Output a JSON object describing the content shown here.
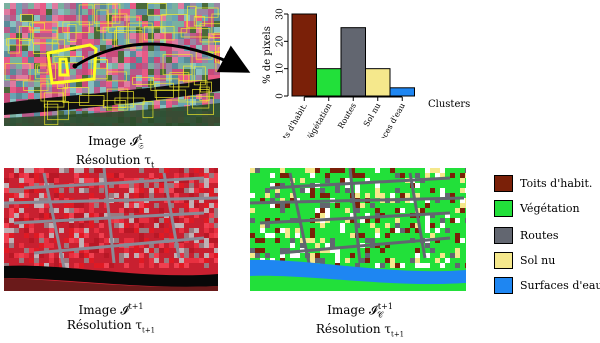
{
  "colors": {
    "toits": "#7a2008",
    "vegetation": "#22e03a",
    "routes": "#626670",
    "sol_nu": "#f5e88c",
    "eau": "#1e86f2",
    "segment_outline": "#f4ec2a",
    "pink": "#e85a86",
    "cyan": "#6aa4b2",
    "red_ir": "#e01a24"
  },
  "icons": {
    "arrow": "curved-arrow-icon"
  },
  "top_left_caption": {
    "line1": "Image 𝓘",
    "line1_sub": "𝔖",
    "line1_sup": "t",
    "line2": "Résolution τ",
    "line2_sub": "t"
  },
  "bottom_left_caption": {
    "line1": "Image 𝓘",
    "line1_sup": "t+1",
    "line2": "Résolution τ",
    "line2_sub": "t+1"
  },
  "bottom_right_caption": {
    "line1": "Image 𝓘",
    "line1_sub": "𝒞",
    "line1_sup": "t+1",
    "line2": "Résolution τ",
    "line2_sub": "t+1"
  },
  "chart_data": {
    "type": "bar",
    "categories": [
      "Toits d'habit.",
      "Végétation",
      "Routes",
      "Sol nu",
      "Surfaces d'eau"
    ],
    "values": [
      30,
      10,
      25,
      10,
      3
    ],
    "colors": [
      "#7a2008",
      "#22e03a",
      "#626670",
      "#f5e88c",
      "#1e86f2"
    ],
    "ylabel": "% de pixels",
    "xlabel": "Clusters",
    "ylim": [
      0,
      30
    ],
    "yticks": [
      0,
      10,
      20,
      30
    ],
    "yticks_labels": [
      "0",
      "10",
      "20",
      "30"
    ]
  },
  "legend": {
    "items": [
      {
        "label": "Toits d'habit.",
        "color": "#7a2008"
      },
      {
        "label": "Végétation",
        "color": "#22e03a"
      },
      {
        "label": "Routes",
        "color": "#626670"
      },
      {
        "label": "Sol nu",
        "color": "#f5e88c"
      },
      {
        "label": "Surfaces d'eau",
        "color": "#1e86f2"
      }
    ]
  }
}
